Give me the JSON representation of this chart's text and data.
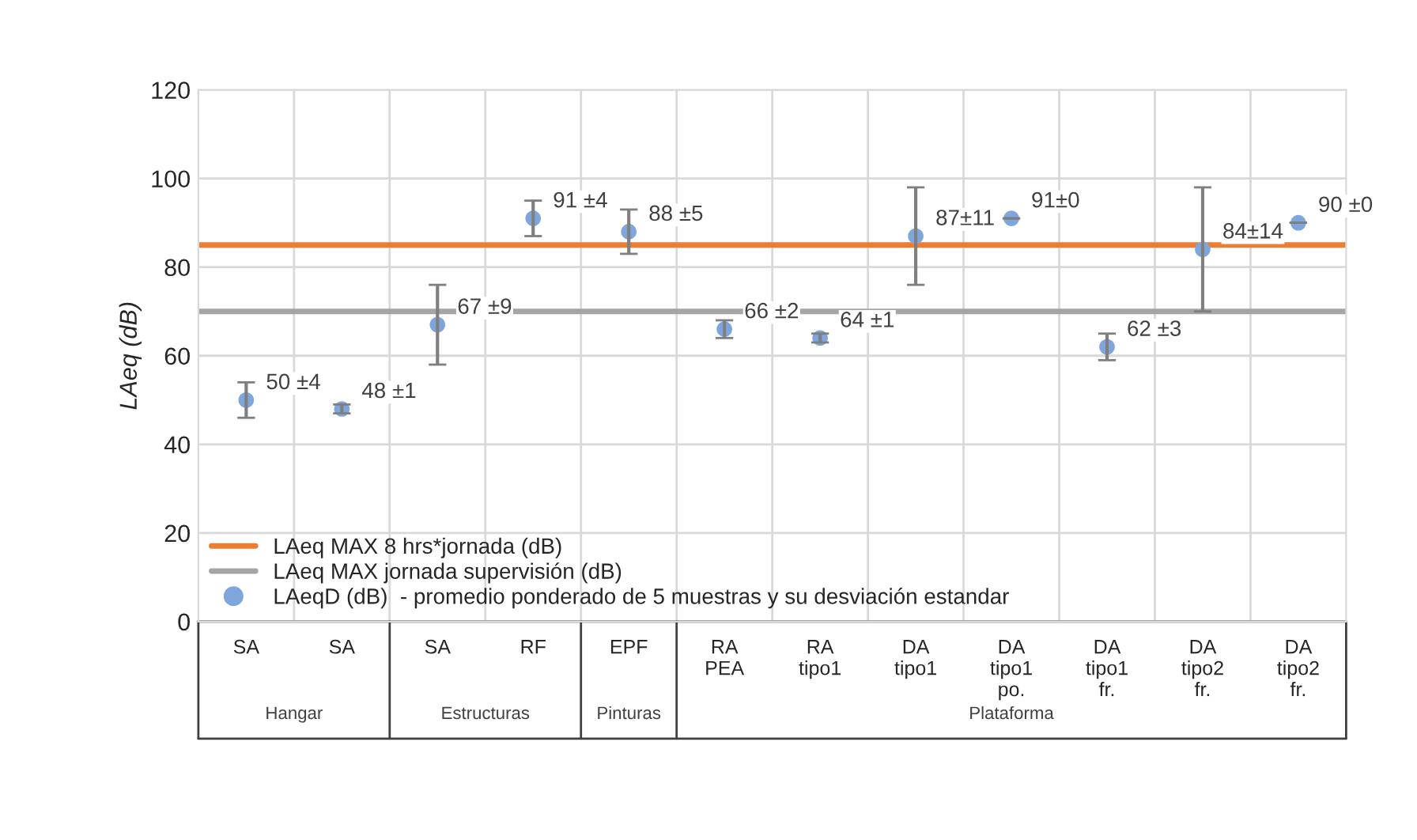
{
  "chart_data": {
    "type": "scatter",
    "ylabel": "LAeq (dB)",
    "categories": [
      "SA",
      "SA",
      "SA",
      "RF",
      "EPF",
      "RA\nPEA",
      "RA\ntipo1",
      "DA\ntipo1",
      "DA\ntipo1\npo.",
      "DA\ntipo1\nfr.",
      "DA\ntipo2\nfr.",
      "DA\ntipo2\nfr."
    ],
    "series": [
      {
        "name": "LAeqD (dB)  - promedio ponderado de 5 muestras y su desviación estandar",
        "color": "#7fa6dc",
        "values": [
          50,
          48,
          67,
          91,
          88,
          66,
          64,
          87,
          91,
          62,
          84,
          90
        ],
        "errors": [
          4,
          1,
          9,
          4,
          5,
          2,
          1,
          11,
          0,
          3,
          14,
          0
        ],
        "value_labels": [
          "50 ±4",
          "48 ±1",
          "67 ±9",
          "91 ±4",
          "88 ±5",
          "66 ±2",
          "64 ±1",
          "87±11",
          "91±0",
          "62 ±3",
          "84±14",
          "90 ±0"
        ]
      }
    ],
    "ref_lines": [
      {
        "axis": "y",
        "value": 85,
        "label": "LAeq MAX 8 hrs*jornada (dB)",
        "color": "#ed7d31"
      },
      {
        "axis": "y",
        "value": 70,
        "label": "LAeq MAX jornada supervisión (dB)",
        "color": "#a5a5a5"
      }
    ],
    "annotations": [
      "Hangar",
      "Estructuras",
      "Pinturas",
      "Plataforma"
    ],
    "ylim": [
      0,
      120
    ],
    "yticks": [
      0,
      20,
      40,
      60,
      80,
      100,
      120
    ],
    "grid": true,
    "legend": "bottom left",
    "marker": "circle"
  }
}
